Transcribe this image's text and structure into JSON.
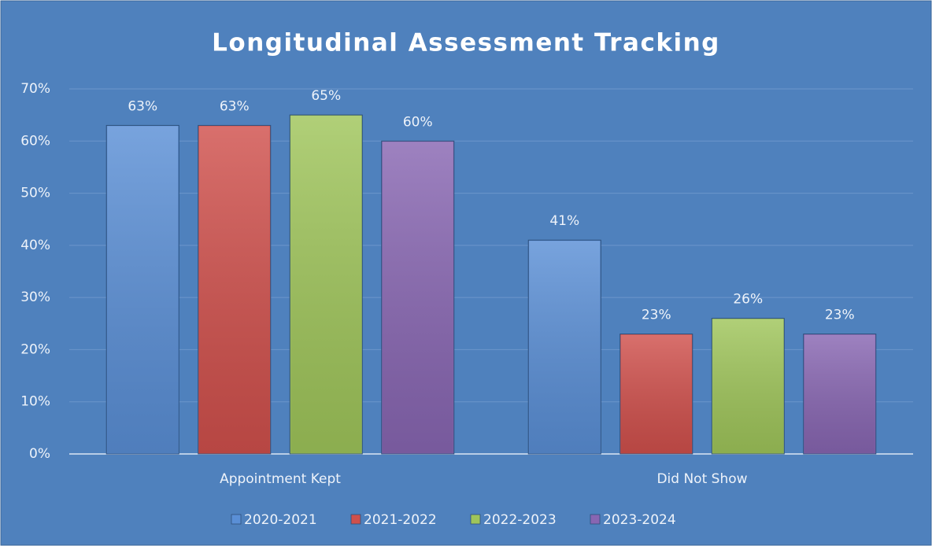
{
  "chart_data": {
    "type": "bar",
    "title": "Longitudinal Assessment Tracking",
    "categories": [
      "Appointment Kept",
      "Did Not Show"
    ],
    "series": [
      {
        "name": "2020-2021",
        "color": "#5a8fd6",
        "values": [
          63,
          41
        ],
        "value_labels": [
          "63%",
          "41%"
        ]
      },
      {
        "name": "2021-2022",
        "color": "#d0504c",
        "values": [
          63,
          23
        ],
        "value_labels": [
          "63%",
          "23%"
        ]
      },
      {
        "name": "2022-2023",
        "color": "#9fc55a",
        "values": [
          65,
          26
        ],
        "value_labels": [
          "65%",
          "26%"
        ]
      },
      {
        "name": "2023-2024",
        "color": "#8866b2",
        "values": [
          60,
          23
        ],
        "value_labels": [
          "60%",
          "23%"
        ]
      }
    ],
    "ylim": [
      0,
      70
    ],
    "yticks": [
      {
        "value": 0,
        "label": "0%"
      },
      {
        "value": 10,
        "label": "10%"
      },
      {
        "value": 20,
        "label": "20%"
      },
      {
        "value": 30,
        "label": "30%"
      },
      {
        "value": 40,
        "label": "40%"
      },
      {
        "value": 50,
        "label": "50%"
      },
      {
        "value": 60,
        "label": "60%"
      },
      {
        "value": 70,
        "label": "70%"
      }
    ],
    "grid": true,
    "legend": "bottom"
  }
}
